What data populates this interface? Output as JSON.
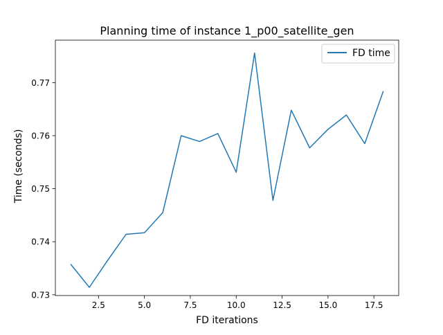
{
  "chart_data": {
    "type": "line",
    "title": "Planning time of instance 1_p00_satellite_gen",
    "xlabel": "FD iterations",
    "ylabel": "Time (seconds)",
    "xlim": [
      0.15,
      18.85
    ],
    "ylim": [
      0.72985,
      0.77801
    ],
    "xticks": [
      2.5,
      5.0,
      7.5,
      10.0,
      12.5,
      15.0,
      17.5
    ],
    "xtick_labels": [
      "2.5",
      "5.0",
      "7.5",
      "10.0",
      "12.5",
      "15.0",
      "17.5"
    ],
    "yticks": [
      0.73,
      0.74,
      0.75,
      0.76,
      0.77
    ],
    "ytick_labels": [
      "0.73",
      "0.74",
      "0.75",
      "0.76",
      "0.77"
    ],
    "grid": false,
    "legend_position": "top-right",
    "series": [
      {
        "name": "FD time",
        "color": "#1f77b4",
        "x": [
          1,
          2,
          3,
          4,
          5,
          6,
          7,
          8,
          9,
          10,
          11,
          12,
          13,
          14,
          15,
          16,
          17,
          18
        ],
        "y": [
          0.7357,
          0.7314,
          0.7365,
          0.7414,
          0.7417,
          0.7455,
          0.76,
          0.7589,
          0.7604,
          0.7531,
          0.7756,
          0.7478,
          0.7648,
          0.7577,
          0.7612,
          0.7639,
          0.7585,
          0.7683
        ]
      }
    ]
  }
}
